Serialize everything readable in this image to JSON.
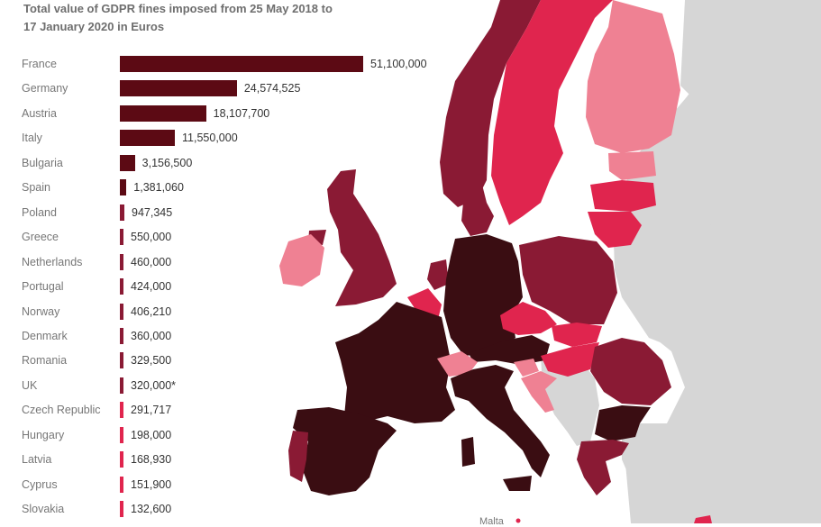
{
  "title_line1": "Total value of GDPR fines imposed from 25 May 2018 to",
  "title_line2": "17 January 2020 in Euros",
  "map_label_malta": "Malta",
  "colors": {
    "darkest": "#3a0d12",
    "dark": "#5c0a14",
    "maroon": "#8a1a34",
    "crimson": "#e0254e",
    "pink": "#ef8193",
    "grey": "#d6d6d6",
    "water": "#ffffff"
  },
  "chart_data": {
    "type": "bar",
    "orientation": "horizontal",
    "title": "Total value of GDPR fines imposed from 25 May 2018 to 17 January 2020 in Euros",
    "categories": [
      "France",
      "Germany",
      "Austria",
      "Italy",
      "Bulgaria",
      "Spain",
      "Poland",
      "Greece",
      "Netherlands",
      "Portugal",
      "Norway",
      "Denmark",
      "Romania",
      "UK",
      "Czech Republic",
      "Hungary",
      "Latvia",
      "Cyprus",
      "Slovakia"
    ],
    "values": [
      51100000,
      24574525,
      18107700,
      11550000,
      3156500,
      1381060,
      947345,
      550000,
      460000,
      424000,
      406210,
      360000,
      329500,
      320000,
      291717,
      198000,
      168930,
      151900,
      132600
    ],
    "value_labels": [
      "51,100,000",
      "24,574,525",
      "18,107,700",
      "11,550,000",
      "3,156,500",
      "1,381,060",
      "947,345",
      "550,000",
      "460,000",
      "424,000",
      "406,210",
      "360,000",
      "329,500",
      "320,000*",
      "291,717",
      "198,000",
      "168,930",
      "151,900",
      "132,600"
    ],
    "bar_colors": [
      "#5c0a14",
      "#5c0a14",
      "#5c0a14",
      "#5c0a14",
      "#5c0a14",
      "#5c0a14",
      "#8a1a34",
      "#8a1a34",
      "#8a1a34",
      "#8a1a34",
      "#8a1a34",
      "#8a1a34",
      "#8a1a34",
      "#8a1a34",
      "#e0254e",
      "#e0254e",
      "#e0254e",
      "#e0254e",
      "#e0254e"
    ]
  }
}
